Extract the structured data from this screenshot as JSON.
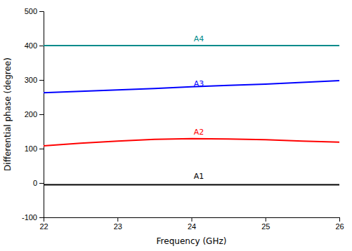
{
  "chart_data": {
    "type": "line",
    "title": "",
    "xlabel": "Frequency (GHz)",
    "ylabel": "Differential phase (degree)",
    "x": [
      22,
      22.5,
      23,
      23.5,
      24,
      24.5,
      25,
      25.5,
      26
    ],
    "xlim": [
      22,
      26
    ],
    "ylim": [
      -100,
      500
    ],
    "xticks": [
      22,
      23,
      24,
      25,
      26
    ],
    "yticks": [
      -100,
      0,
      100,
      200,
      300,
      400,
      500
    ],
    "grid": false,
    "series": [
      {
        "color": "#000000",
        "values": [
          -5,
          -5,
          -5,
          -5,
          -5,
          -5,
          -5,
          -5,
          -5
        ]
      },
      {
        "color": "#ff0000",
        "values": [
          108,
          116,
          122,
          127,
          129,
          128,
          126,
          122,
          119
        ]
      },
      {
        "color": "#0000ff",
        "values": [
          263,
          267,
          271,
          275,
          280,
          284,
          288,
          293,
          298
        ]
      },
      {
        "color": "#008B8B",
        "values": [
          400,
          400,
          400,
          400,
          400,
          400,
          400,
          400,
          400
        ]
      }
    ],
    "annotations": [
      {
        "text": "A4",
        "x": 24.1,
        "y": 412,
        "color": "#008B8B"
      },
      {
        "text": "A3",
        "x": 24.1,
        "y": 282,
        "color": "#0000ff"
      },
      {
        "text": "A2",
        "x": 24.1,
        "y": 140,
        "color": "#ff0000"
      },
      {
        "text": "A1",
        "x": 24.1,
        "y": 12,
        "color": "#000000"
      }
    ]
  }
}
